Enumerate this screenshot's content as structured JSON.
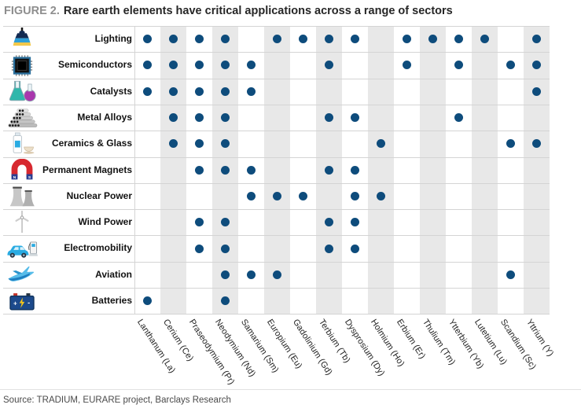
{
  "title": {
    "prefix": "FIGURE 2.",
    "text": "Rare earth elements have critical applications across a range of sectors"
  },
  "source": "Source: TRADIUM, EURARE project, Barclays Research",
  "chart_data": {
    "type": "heatmap",
    "subtype": "binary-dot-matrix",
    "dot_color": "#0e4c7c",
    "band_color": "#e8e8e8",
    "legend": "dot = element is used in sector",
    "columns": [
      "Lanthanum (La)",
      "Cerium (Ce)",
      "Praseodymium (Pr)",
      "Neodymium (Nd)",
      "Samarium (Sm)",
      "Europium (Eu)",
      "Gadolinium (Gd)",
      "Terbium (Tb)",
      "Dysprosium (Dy)",
      "Holmium (Ho)",
      "Erbium (Er)",
      "Thulium (Tm)",
      "Ytterbium (Yb)",
      "Lutetium (Lu)",
      "Scandium (Sc)",
      "Yttrium (Y)"
    ],
    "column_symbols": [
      "La",
      "Ce",
      "Pr",
      "Nd",
      "Sm",
      "Eu",
      "Gd",
      "Tb",
      "Dy",
      "Ho",
      "Er",
      "Tm",
      "Yb",
      "Lu",
      "Sc",
      "Y"
    ],
    "rows": [
      {
        "label": "Lighting",
        "icon": "lamp-icon",
        "elements": [
          "La",
          "Ce",
          "Pr",
          "Nd",
          "Eu",
          "Gd",
          "Tb",
          "Dy",
          "Er",
          "Tm",
          "Yb",
          "Lu",
          "Y"
        ],
        "values": [
          1,
          1,
          1,
          1,
          0,
          1,
          1,
          1,
          1,
          0,
          1,
          1,
          1,
          1,
          0,
          1
        ]
      },
      {
        "label": "Semiconductors",
        "icon": "chip-icon",
        "elements": [
          "La",
          "Ce",
          "Pr",
          "Nd",
          "Sm",
          "Tb",
          "Er",
          "Yb",
          "Sc",
          "Y"
        ],
        "values": [
          1,
          1,
          1,
          1,
          1,
          0,
          0,
          1,
          0,
          0,
          1,
          0,
          1,
          0,
          1,
          1
        ]
      },
      {
        "label": "Catalysts",
        "icon": "flasks-icon",
        "elements": [
          "La",
          "Ce",
          "Pr",
          "Nd",
          "Sm",
          "Y"
        ],
        "values": [
          1,
          1,
          1,
          1,
          1,
          0,
          0,
          0,
          0,
          0,
          0,
          0,
          0,
          0,
          0,
          1
        ]
      },
      {
        "label": "Metal Alloys",
        "icon": "metal-stack-icon",
        "elements": [
          "Ce",
          "Pr",
          "Nd",
          "Tb",
          "Dy",
          "Yb"
        ],
        "values": [
          0,
          1,
          1,
          1,
          0,
          0,
          0,
          1,
          1,
          0,
          0,
          0,
          1,
          0,
          0,
          0
        ]
      },
      {
        "label": "Ceramics & Glass",
        "icon": "bottle-cup-icon",
        "elements": [
          "Ce",
          "Pr",
          "Nd",
          "Ho",
          "Sc",
          "Y"
        ],
        "values": [
          0,
          1,
          1,
          1,
          0,
          0,
          0,
          0,
          0,
          1,
          0,
          0,
          0,
          0,
          1,
          1
        ]
      },
      {
        "label": "Permanent Magnets",
        "icon": "magnet-icon",
        "elements": [
          "Pr",
          "Nd",
          "Sm",
          "Tb",
          "Dy"
        ],
        "values": [
          0,
          0,
          1,
          1,
          1,
          0,
          0,
          1,
          1,
          0,
          0,
          0,
          0,
          0,
          0,
          0
        ]
      },
      {
        "label": "Nuclear Power",
        "icon": "cooling-towers-icon",
        "elements": [
          "Sm",
          "Eu",
          "Gd",
          "Dy",
          "Ho"
        ],
        "values": [
          0,
          0,
          0,
          0,
          1,
          1,
          1,
          0,
          1,
          1,
          0,
          0,
          0,
          0,
          0,
          0
        ]
      },
      {
        "label": "Wind Power",
        "icon": "wind-turbine-icon",
        "elements": [
          "Pr",
          "Nd",
          "Tb",
          "Dy"
        ],
        "values": [
          0,
          0,
          1,
          1,
          0,
          0,
          0,
          1,
          1,
          0,
          0,
          0,
          0,
          0,
          0,
          0
        ]
      },
      {
        "label": "Electromobility",
        "icon": "ev-charging-icon",
        "elements": [
          "Pr",
          "Nd",
          "Tb",
          "Dy"
        ],
        "values": [
          0,
          0,
          1,
          1,
          0,
          0,
          0,
          1,
          1,
          0,
          0,
          0,
          0,
          0,
          0,
          0
        ]
      },
      {
        "label": "Aviation",
        "icon": "airplane-icon",
        "elements": [
          "Nd",
          "Sm",
          "Eu",
          "Sc"
        ],
        "values": [
          0,
          0,
          0,
          1,
          1,
          1,
          0,
          0,
          0,
          0,
          0,
          0,
          0,
          0,
          1,
          0
        ]
      },
      {
        "label": "Batteries",
        "icon": "battery-icon",
        "elements": [
          "La",
          "Nd"
        ],
        "values": [
          1,
          0,
          0,
          1,
          0,
          0,
          0,
          0,
          0,
          0,
          0,
          0,
          0,
          0,
          0,
          0
        ]
      }
    ]
  }
}
